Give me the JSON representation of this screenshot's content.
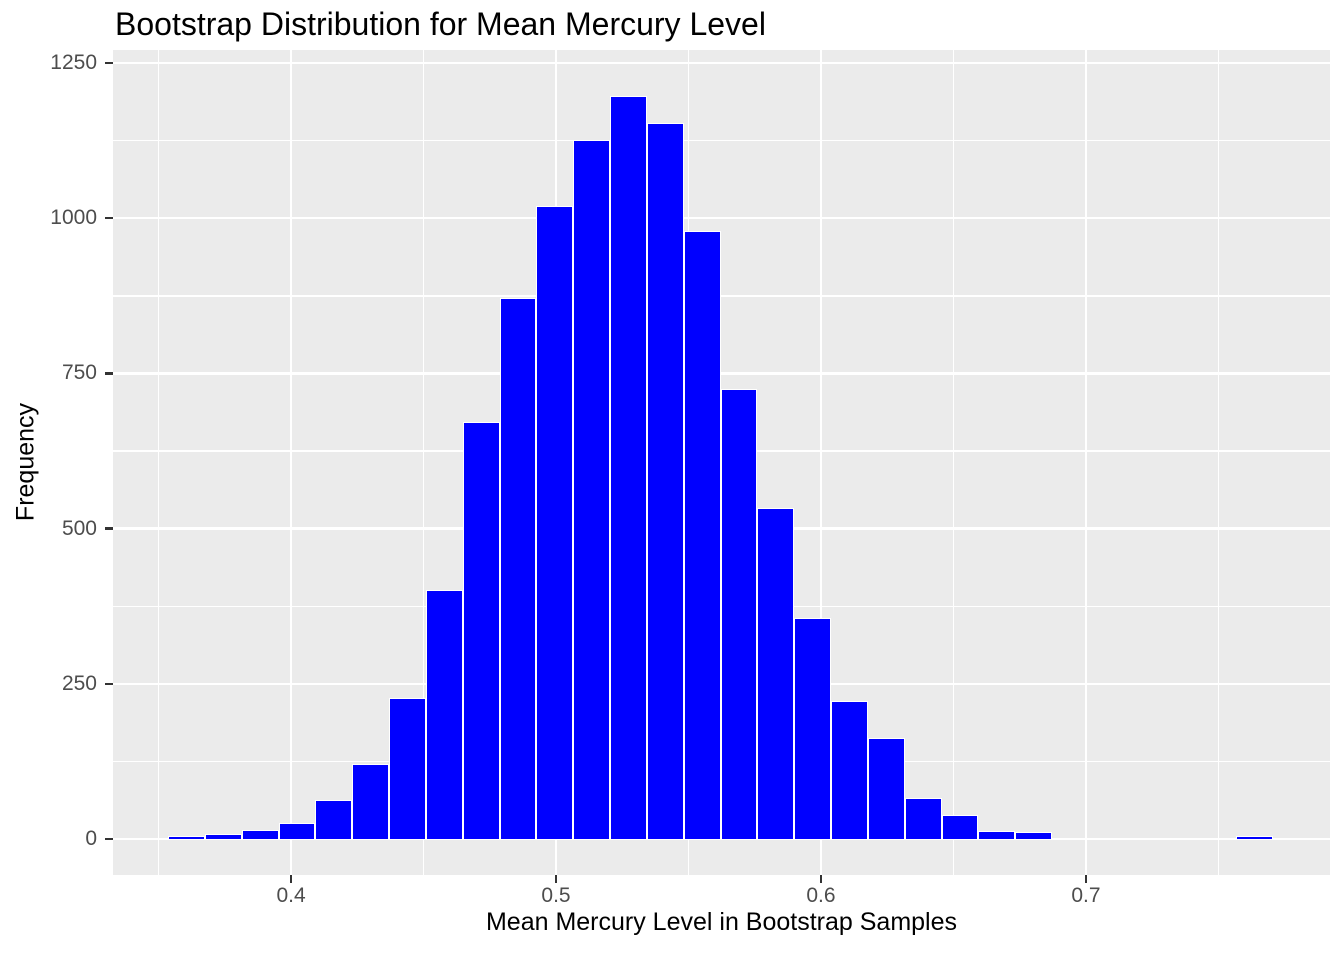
{
  "chart_data": {
    "type": "bar",
    "subtype": "histogram",
    "title": "Bootstrap Distribution for Mean Mercury Level",
    "xlabel": "Mean Mercury Level in Bootstrap Samples",
    "ylabel": "Frequency",
    "x_domain": [
      0.3328,
      0.7921
    ],
    "y_domain": [
      -58,
      1271
    ],
    "x_ticks": [
      {
        "value": 0.4,
        "label": "0.4"
      },
      {
        "value": 0.5,
        "label": "0.5"
      },
      {
        "value": 0.6,
        "label": "0.6"
      },
      {
        "value": 0.7,
        "label": "0.7"
      }
    ],
    "y_ticks": [
      {
        "value": 0,
        "label": "0"
      },
      {
        "value": 250,
        "label": "250"
      },
      {
        "value": 500,
        "label": "500"
      },
      {
        "value": 750,
        "label": "750"
      },
      {
        "value": 1000,
        "label": "1000"
      },
      {
        "value": 1250,
        "label": "1250"
      }
    ],
    "x_minor_ticks": [
      0.35,
      0.45,
      0.55,
      0.65,
      0.75
    ],
    "y_minor_ticks": [
      125,
      375,
      625,
      875,
      1125
    ],
    "grid": "on",
    "legend": "none",
    "bins": {
      "start": 0.3536,
      "width": 0.0139,
      "counts": [
        3,
        5,
        12,
        24,
        61,
        119,
        225,
        398,
        670,
        869,
        1018,
        1123,
        1195,
        1151,
        977,
        723,
        530,
        354,
        220,
        161,
        63,
        37,
        10,
        9,
        0,
        0,
        0,
        0,
        0,
        2
      ]
    },
    "colors": {
      "bar_fill": "#0000FF",
      "bar_outline": "#FFFFFF",
      "panel_bg": "#EBEBEB",
      "grid": "#FFFFFF",
      "tick_mark": "#333333",
      "tick_label": "#4D4D4D",
      "title_text": "#000000"
    }
  }
}
